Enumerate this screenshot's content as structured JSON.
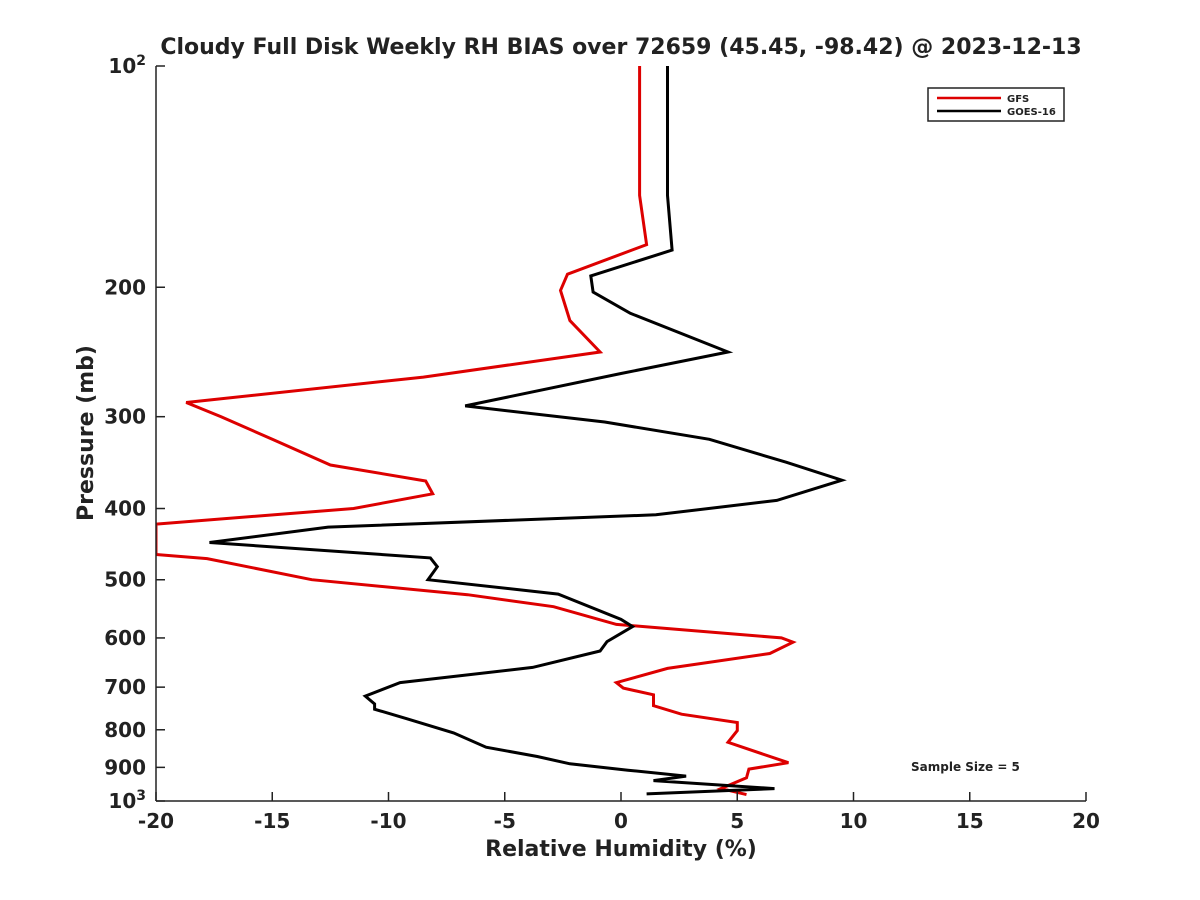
{
  "chart_data": {
    "type": "line",
    "title": "Cloudy Full Disk Weekly RH BIAS over 72659 (45.45, -98.42) @ 2023-12-13",
    "xlabel": "Relative Humidity (%)",
    "ylabel": "Pressure (mb)",
    "xlim": [
      -20,
      20
    ],
    "ylim": [
      100,
      1000
    ],
    "y_scale": "log",
    "y_reversed": true,
    "grid": false,
    "legend_position": "top-right",
    "x_ticks": [
      "-20",
      "-15",
      "-10",
      "-5",
      "0",
      "5",
      "10",
      "15",
      "20"
    ],
    "x_tick_values": [
      -20,
      -15,
      -10,
      -5,
      0,
      5,
      10,
      15,
      20
    ],
    "y_ticks": [
      {
        "value": 100,
        "base": "10",
        "exp": "2"
      },
      {
        "value": 200,
        "label": "200"
      },
      {
        "value": 300,
        "label": "300"
      },
      {
        "value": 400,
        "label": "400"
      },
      {
        "value": 500,
        "label": "500"
      },
      {
        "value": 600,
        "label": "600"
      },
      {
        "value": 700,
        "label": "700"
      },
      {
        "value": 800,
        "label": "800"
      },
      {
        "value": 900,
        "label": "900"
      },
      {
        "value": 1000,
        "base": "10",
        "exp": "3"
      }
    ],
    "annotation": "Sample Size = 5",
    "series": [
      {
        "name": "GFS",
        "color": "#dd0000",
        "points": [
          {
            "x": 0.8,
            "y": 100
          },
          {
            "x": 0.8,
            "y": 150
          },
          {
            "x": 1.1,
            "y": 175
          },
          {
            "x": -2.3,
            "y": 192
          },
          {
            "x": -2.6,
            "y": 202
          },
          {
            "x": -2.2,
            "y": 222
          },
          {
            "x": -0.9,
            "y": 245
          },
          {
            "x": -8.5,
            "y": 265
          },
          {
            "x": -18.7,
            "y": 287
          },
          {
            "x": -17.2,
            "y": 300
          },
          {
            "x": -15.0,
            "y": 322
          },
          {
            "x": -12.5,
            "y": 349
          },
          {
            "x": -8.4,
            "y": 367
          },
          {
            "x": -8.1,
            "y": 382
          },
          {
            "x": -11.5,
            "y": 400
          },
          {
            "x": -20.0,
            "y": 420
          },
          {
            "x": -20.0,
            "y": 462
          },
          {
            "x": -17.8,
            "y": 468
          },
          {
            "x": -13.3,
            "y": 500
          },
          {
            "x": -6.6,
            "y": 524
          },
          {
            "x": -2.9,
            "y": 544
          },
          {
            "x": -0.2,
            "y": 575
          },
          {
            "x": 6.9,
            "y": 600
          },
          {
            "x": 7.4,
            "y": 608
          },
          {
            "x": 6.4,
            "y": 630
          },
          {
            "x": 2.0,
            "y": 660
          },
          {
            "x": -0.2,
            "y": 690
          },
          {
            "x": 0.1,
            "y": 702
          },
          {
            "x": 1.4,
            "y": 717
          },
          {
            "x": 1.4,
            "y": 742
          },
          {
            "x": 2.6,
            "y": 762
          },
          {
            "x": 5.0,
            "y": 782
          },
          {
            "x": 5.0,
            "y": 802
          },
          {
            "x": 4.6,
            "y": 832
          },
          {
            "x": 7.2,
            "y": 887
          },
          {
            "x": 5.5,
            "y": 905
          },
          {
            "x": 5.4,
            "y": 930
          },
          {
            "x": 4.3,
            "y": 962
          },
          {
            "x": 5.4,
            "y": 980
          }
        ]
      },
      {
        "name": "GOES-16",
        "color": "#000000",
        "points": [
          {
            "x": 2.0,
            "y": 100
          },
          {
            "x": 2.0,
            "y": 150
          },
          {
            "x": 2.2,
            "y": 178
          },
          {
            "x": -1.3,
            "y": 193
          },
          {
            "x": -1.2,
            "y": 203
          },
          {
            "x": 0.4,
            "y": 217
          },
          {
            "x": 4.6,
            "y": 245
          },
          {
            "x": 0.0,
            "y": 262
          },
          {
            "x": -6.7,
            "y": 290
          },
          {
            "x": -0.7,
            "y": 305
          },
          {
            "x": 3.8,
            "y": 322
          },
          {
            "x": 7.1,
            "y": 346
          },
          {
            "x": 9.5,
            "y": 366
          },
          {
            "x": 6.7,
            "y": 390
          },
          {
            "x": 1.5,
            "y": 408
          },
          {
            "x": -12.6,
            "y": 424
          },
          {
            "x": -17.7,
            "y": 445
          },
          {
            "x": -8.2,
            "y": 467
          },
          {
            "x": -7.9,
            "y": 480
          },
          {
            "x": -8.3,
            "y": 500
          },
          {
            "x": -2.7,
            "y": 523
          },
          {
            "x": 0.0,
            "y": 566
          },
          {
            "x": 0.5,
            "y": 579
          },
          {
            "x": -0.6,
            "y": 607
          },
          {
            "x": -0.9,
            "y": 625
          },
          {
            "x": -3.8,
            "y": 658
          },
          {
            "x": -9.5,
            "y": 690
          },
          {
            "x": -11.0,
            "y": 720
          },
          {
            "x": -10.6,
            "y": 738
          },
          {
            "x": -10.6,
            "y": 750
          },
          {
            "x": -9.2,
            "y": 773
          },
          {
            "x": -7.2,
            "y": 808
          },
          {
            "x": -5.8,
            "y": 845
          },
          {
            "x": -3.6,
            "y": 870
          },
          {
            "x": -2.2,
            "y": 890
          },
          {
            "x": 0.3,
            "y": 908
          },
          {
            "x": 2.8,
            "y": 925
          },
          {
            "x": 1.4,
            "y": 938
          },
          {
            "x": 6.6,
            "y": 962
          },
          {
            "x": 1.1,
            "y": 978
          }
        ]
      }
    ]
  }
}
